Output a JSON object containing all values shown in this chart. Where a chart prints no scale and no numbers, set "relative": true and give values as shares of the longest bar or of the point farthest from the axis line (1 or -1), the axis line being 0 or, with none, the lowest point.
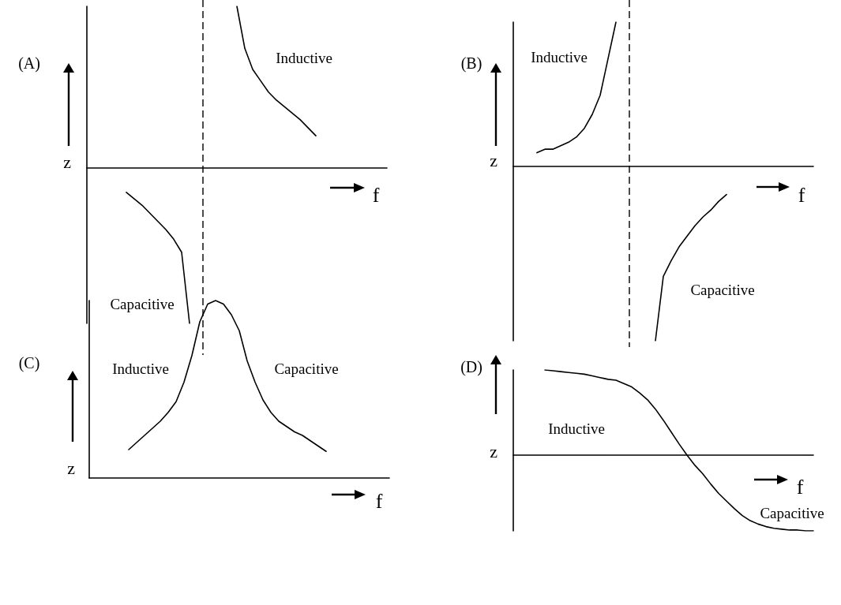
{
  "chart_data": [
    {
      "type": "line",
      "title": "(A)",
      "xlabel": "f",
      "ylabel": "z",
      "relative": true,
      "marker": "none",
      "line_style": "solid",
      "categories": [
        null,
        null,
        null,
        null,
        null,
        null,
        null,
        null,
        null,
        null,
        null,
        null,
        null,
        null,
        null,
        null,
        null,
        null,
        null,
        null,
        null,
        null,
        null,
        null,
        null,
        null,
        null,
        null,
        null,
        null,
        null,
        null,
        null,
        null,
        null,
        null,
        null,
        null,
        null
      ],
      "series": [
        {
          "name": "Inductive",
          "color": "#000000",
          "values": [
            null,
            null,
            null,
            null,
            null,
            null,
            null,
            null,
            null,
            null,
            null,
            null,
            null,
            null,
            null,
            null,
            null,
            null,
            null,
            1.0,
            0.74,
            0.61,
            0.54,
            0.47,
            0.42,
            0.38,
            0.34,
            0.3,
            0.25,
            0.2,
            null,
            null,
            null,
            null,
            null,
            null,
            null,
            null,
            null
          ]
        },
        {
          "name": "Capacitive",
          "color": "#000000",
          "values": [
            null,
            null,
            null,
            null,
            null,
            -0.15,
            -0.19,
            -0.23,
            -0.28,
            -0.33,
            -0.38,
            -0.44,
            -0.52,
            -0.96,
            null,
            null,
            null,
            null,
            null,
            null,
            null,
            null,
            null,
            null,
            null,
            null,
            null,
            null,
            null,
            null,
            null,
            null,
            null,
            null,
            null,
            null,
            null,
            null,
            null
          ]
        }
      ]
    },
    {
      "type": "line",
      "title": "(B)",
      "xlabel": "f",
      "ylabel": "z",
      "relative": true,
      "marker": "none",
      "line_style": "solid",
      "categories": [
        null,
        null,
        null,
        null,
        null,
        null,
        null,
        null,
        null,
        null,
        null,
        null,
        null,
        null,
        null,
        null,
        null,
        null,
        null,
        null,
        null,
        null,
        null,
        null,
        null,
        null,
        null,
        null,
        null,
        null,
        null,
        null,
        null,
        null,
        null,
        null,
        null,
        null,
        null
      ],
      "series": [
        {
          "name": "Inductive",
          "color": "#000000",
          "values": [
            null,
            null,
            null,
            0.08,
            0.1,
            0.1,
            0.12,
            0.14,
            0.17,
            0.22,
            0.3,
            0.41,
            0.62,
            0.83,
            null,
            null,
            null,
            null,
            null,
            null,
            null,
            null,
            null,
            null,
            null,
            null,
            null,
            null,
            null,
            null,
            null,
            null,
            null,
            null,
            null,
            null,
            null,
            null,
            null
          ]
        },
        {
          "name": "Capacitive",
          "color": "#000000",
          "values": [
            null,
            null,
            null,
            null,
            null,
            null,
            null,
            null,
            null,
            null,
            null,
            null,
            null,
            null,
            null,
            null,
            null,
            null,
            -1.0,
            -0.63,
            -0.54,
            -0.46,
            -0.4,
            -0.34,
            -0.29,
            -0.25,
            -0.2,
            -0.16,
            null,
            null,
            null,
            null,
            null,
            null,
            null,
            null,
            null,
            null,
            null
          ]
        }
      ]
    },
    {
      "type": "line",
      "title": "(C)",
      "xlabel": "f",
      "ylabel": "z",
      "relative": true,
      "marker": "none",
      "line_style": "solid",
      "categories": [
        null,
        null,
        null,
        null,
        null,
        null,
        null,
        null,
        null,
        null,
        null,
        null,
        null,
        null,
        null,
        null,
        null,
        null,
        null,
        null,
        null,
        null,
        null,
        null,
        null,
        null,
        null,
        null,
        null,
        null,
        null,
        null,
        null,
        null,
        null,
        null,
        null,
        null,
        null
      ],
      "series": [
        {
          "name": "Inductive",
          "color": "#000000",
          "values": [
            null,
            null,
            null,
            null,
            null,
            0.16,
            0.2,
            0.24,
            0.28,
            0.32,
            0.37,
            0.43,
            0.54,
            0.69,
            0.88,
            0.98,
            1.0,
            null,
            null,
            null,
            null,
            null,
            null,
            null,
            null,
            null,
            null,
            null,
            null,
            null,
            null,
            null,
            null,
            null,
            null,
            null,
            null,
            null,
            null
          ]
        },
        {
          "name": "Capacitive",
          "color": "#000000",
          "values": [
            null,
            null,
            null,
            null,
            null,
            null,
            null,
            null,
            null,
            null,
            null,
            null,
            null,
            null,
            null,
            null,
            1.0,
            0.98,
            0.92,
            0.83,
            0.66,
            0.54,
            0.44,
            0.37,
            0.32,
            0.29,
            0.26,
            0.24,
            0.21,
            0.18,
            0.15,
            null,
            null,
            null,
            null,
            null,
            null,
            null,
            null
          ]
        }
      ]
    },
    {
      "type": "line",
      "title": "(D)",
      "xlabel": "f",
      "ylabel": "z",
      "relative": true,
      "marker": "none",
      "line_style": "solid",
      "categories": [
        null,
        null,
        null,
        null,
        null,
        null,
        null,
        null,
        null,
        null,
        null,
        null,
        null,
        null,
        null,
        null,
        null,
        null,
        null,
        null,
        null,
        null,
        null,
        null,
        null,
        null,
        null,
        null,
        null,
        null,
        null,
        null,
        null,
        null,
        null,
        null,
        null,
        null,
        null
      ],
      "series": [
        {
          "color": "#000000",
          "values": [
            null,
            null,
            null,
            null,
            1.0,
            0.99,
            0.98,
            0.97,
            0.96,
            0.95,
            0.93,
            0.91,
            0.89,
            0.88,
            0.84,
            0.8,
            0.73,
            0.65,
            0.54,
            0.41,
            0.27,
            0.13,
            0,
            -0.12,
            -0.22,
            -0.34,
            -0.45,
            -0.54,
            -0.63,
            -0.71,
            -0.77,
            -0.81,
            -0.84,
            -0.86,
            -0.87,
            -0.88,
            -0.88,
            -0.89,
            -0.89
          ]
        }
      ],
      "annotations": [
        "Inductive",
        "Capacitive"
      ]
    }
  ]
}
